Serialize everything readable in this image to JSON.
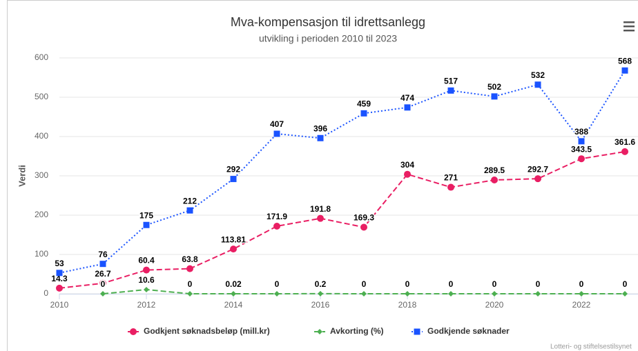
{
  "chart_data": {
    "type": "line",
    "title": "Mva-kompensasjon til idrettsanlegg",
    "subtitle": "utvikling i perioden 2010 til 2023",
    "y_label": "Verdi",
    "credits": "Lotteri- og stiftelsestilsynet",
    "x": [
      2010,
      2011,
      2012,
      2013,
      2014,
      2015,
      2016,
      2017,
      2018,
      2019,
      2020,
      2021,
      2022,
      2023
    ],
    "xlim": [
      2010,
      2024
    ],
    "xticks": [
      2010,
      2012,
      2014,
      2016,
      2018,
      2020,
      2022
    ],
    "ylim": [
      0,
      600
    ],
    "yticks": [
      0,
      100,
      200,
      300,
      400,
      500,
      600
    ],
    "grid": true,
    "series": [
      {
        "name": "Godkjent søknadsbeløp (mill.kr)",
        "color": "#e91e63",
        "marker": "circle",
        "line_style": "dashed",
        "values": [
          14.3,
          26.7,
          60.4,
          63.8,
          113.81,
          171.9,
          191.8,
          169.3,
          304,
          271,
          289.5,
          292.7,
          343.5,
          361.6
        ]
      },
      {
        "name": "Avkorting (%)",
        "color": "#4caf50",
        "marker": "diamond",
        "line_style": "dashed",
        "values": [
          null,
          0,
          10.6,
          0,
          0.02,
          0,
          0.2,
          0,
          0,
          0,
          0,
          0,
          0,
          0
        ]
      },
      {
        "name": "Godkjende søknader",
        "color": "#1a53ff",
        "marker": "square",
        "line_style": "dotted",
        "values": [
          53,
          76,
          175,
          212,
          292,
          407,
          396,
          459,
          474,
          517,
          502,
          532,
          388,
          568
        ]
      }
    ]
  }
}
